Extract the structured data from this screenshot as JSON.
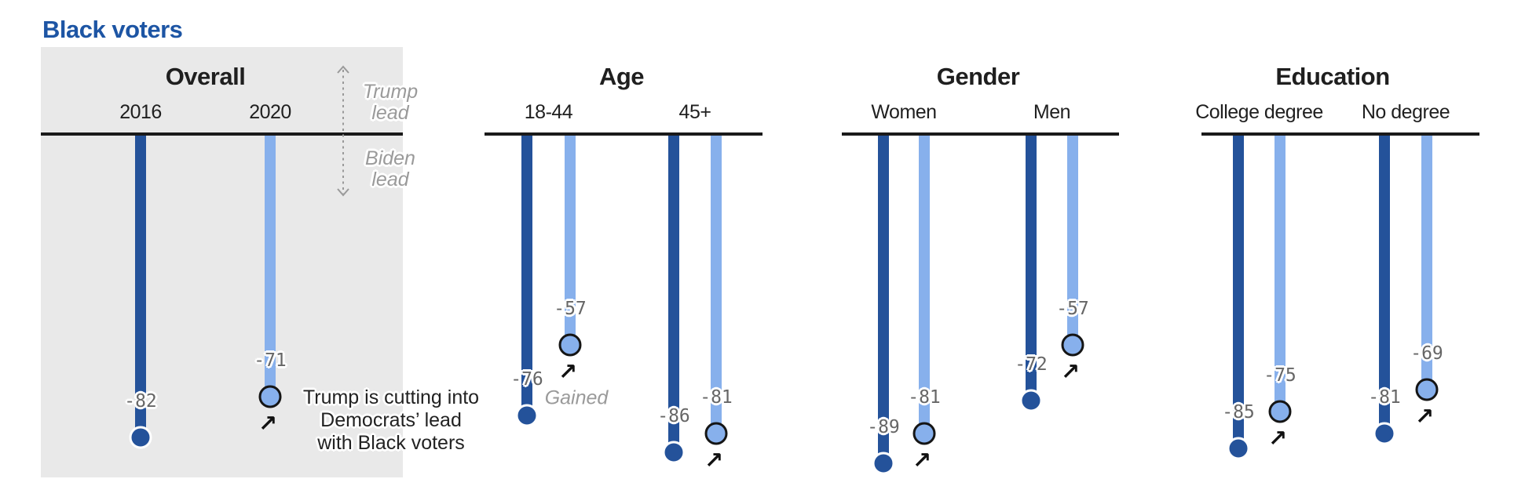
{
  "title": "Black voters",
  "direction_labels": {
    "up_lines": [
      "Trump",
      "lead"
    ],
    "down_lines": [
      "Biden",
      "lead"
    ]
  },
  "annotation": {
    "lines": [
      "Trump is cutting into",
      "Democrats’ lead",
      "with Black voters"
    ]
  },
  "icons": {
    "gained_arrow_glyph": "↗",
    "lead_direction_icon": "double-headed-dashed-vertical-arrow"
  },
  "colors": {
    "accent_title": "#1D55A4",
    "bar_2016": "#24529A",
    "bar_2020": "#87B0EC",
    "panel": "#E9E9E9",
    "axis": "#1A1A1A",
    "value_label": "#666666",
    "muted_note": "#9A9A9A",
    "endpoint_ring_dark": "#FFFFFF",
    "endpoint_ring_light": "#151515"
  },
  "chart_data": {
    "type": "bar",
    "orientation": "vertical-hanging-lollipop",
    "title": "Black voters",
    "series": [
      "2016",
      "2020"
    ],
    "baseline_value": 0,
    "ylim": [
      -90,
      0
    ],
    "grid": false,
    "legend_position": "none",
    "sections": [
      {
        "title": "Overall",
        "groups": [
          {
            "label": "2016",
            "bars": [
              {
                "series": "2016",
                "value": -82
              }
            ]
          },
          {
            "label": "2020",
            "bars": [
              {
                "series": "2020",
                "value": -71,
                "arrow": true
              }
            ]
          }
        ]
      },
      {
        "title": "Age",
        "groups": [
          {
            "label": "18-44",
            "bars": [
              {
                "series": "2016",
                "value": -76
              },
              {
                "series": "2020",
                "value": -57,
                "arrow": true,
                "note": "Gained"
              }
            ]
          },
          {
            "label": "45+",
            "bars": [
              {
                "series": "2016",
                "value": -86
              },
              {
                "series": "2020",
                "value": -81,
                "arrow": true
              }
            ]
          }
        ]
      },
      {
        "title": "Gender",
        "groups": [
          {
            "label": "Women",
            "bars": [
              {
                "series": "2016",
                "value": -89
              },
              {
                "series": "2020",
                "value": -81,
                "arrow": true
              }
            ]
          },
          {
            "label": "Men",
            "bars": [
              {
                "series": "2016",
                "value": -72
              },
              {
                "series": "2020",
                "value": -57,
                "arrow": true
              }
            ]
          }
        ]
      },
      {
        "title": "Education",
        "groups": [
          {
            "label": "College degree",
            "bars": [
              {
                "series": "2016",
                "value": -85
              },
              {
                "series": "2020",
                "value": -75,
                "arrow": true
              }
            ]
          },
          {
            "label": "No degree",
            "bars": [
              {
                "series": "2016",
                "value": -81
              },
              {
                "series": "2020",
                "value": -69,
                "arrow": true
              }
            ]
          }
        ]
      }
    ]
  }
}
